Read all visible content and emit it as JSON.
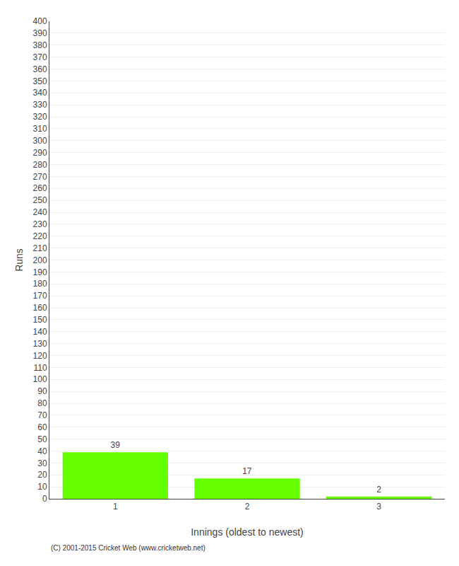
{
  "chart_data": {
    "type": "bar",
    "xlabel": "Innings (oldest to newest)",
    "ylabel": "Runs",
    "categories": [
      "1",
      "2",
      "3"
    ],
    "values": [
      39,
      17,
      2
    ],
    "color": "#66ff00",
    "data_labels": true,
    "ylim": [
      0,
      400
    ],
    "yticks": [
      0,
      10,
      20,
      30,
      40,
      50,
      60,
      70,
      80,
      90,
      100,
      110,
      120,
      130,
      140,
      150,
      160,
      170,
      180,
      190,
      200,
      210,
      220,
      230,
      240,
      250,
      260,
      270,
      280,
      290,
      300,
      310,
      320,
      330,
      340,
      350,
      360,
      370,
      380,
      390,
      400
    ],
    "grid": true,
    "annotations": [
      "(C) 2001-2015 Cricket Web (www.cricketweb.net)"
    ]
  }
}
